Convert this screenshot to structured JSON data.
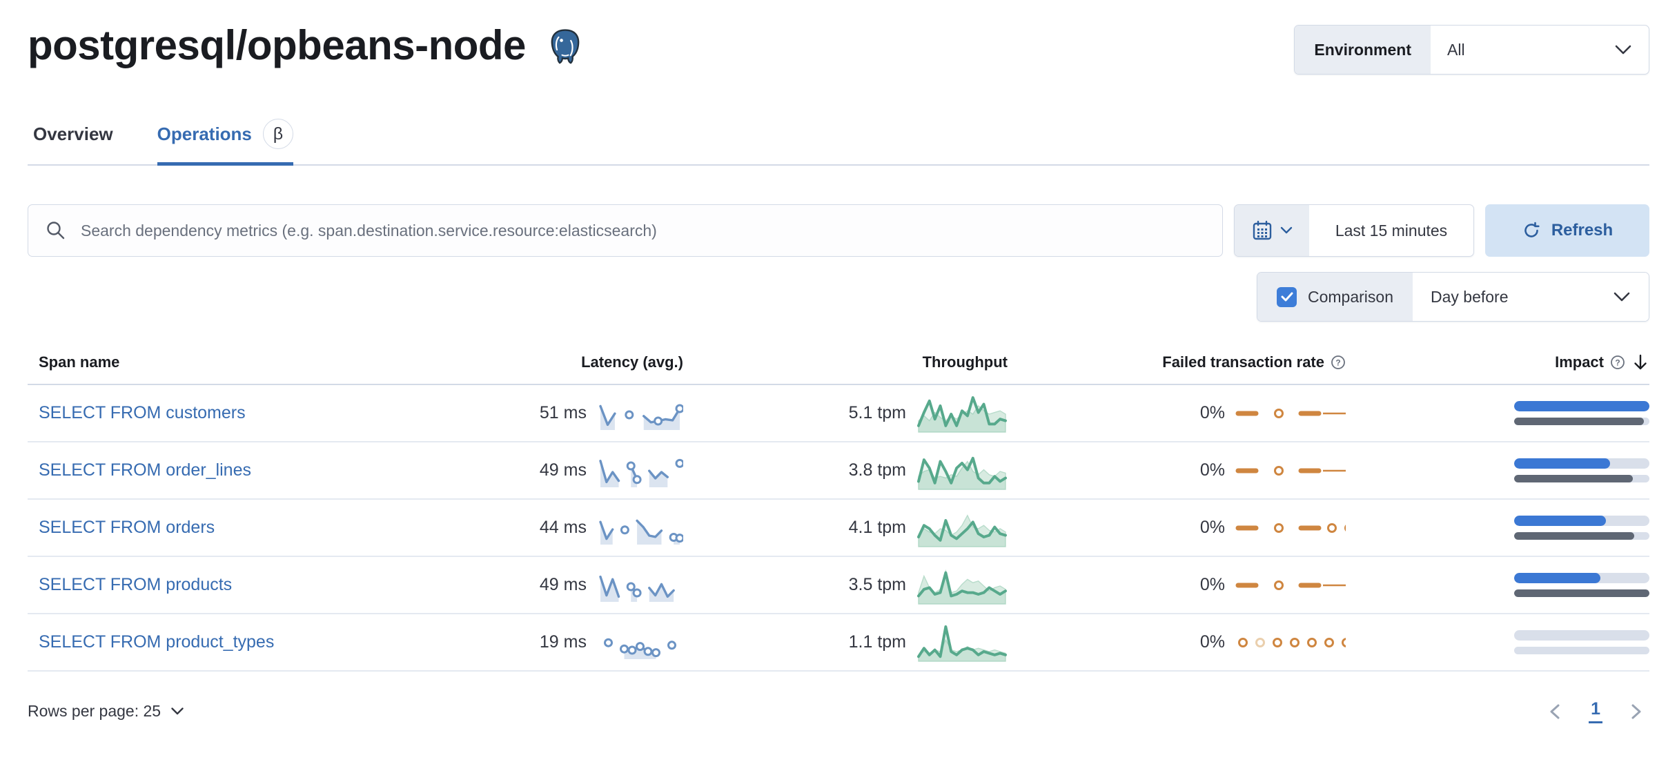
{
  "header": {
    "title": "postgresql/opbeans-node",
    "environment_label": "Environment",
    "environment_value": "All"
  },
  "tabs": [
    {
      "label": "Overview",
      "active": false
    },
    {
      "label": "Operations",
      "active": true,
      "beta": "β"
    }
  ],
  "toolbar": {
    "search_placeholder": "Search dependency metrics (e.g. span.destination.service.resource:elasticsearch)",
    "time_range": "Last 15 minutes",
    "refresh_label": "Refresh",
    "comparison_label": "Comparison",
    "comparison_checked": true,
    "comparison_value": "Day before"
  },
  "table": {
    "columns": [
      {
        "label": "Span name"
      },
      {
        "label": "Latency (avg.)"
      },
      {
        "label": "Throughput"
      },
      {
        "label": "Failed transaction rate",
        "help": true
      },
      {
        "label": "Impact",
        "help": true,
        "sorted": "desc"
      }
    ],
    "rows": [
      {
        "span_name": "SELECT FROM customers",
        "latency": "51 ms",
        "throughput": "5.1 tpm",
        "failed_rate": "0%",
        "impact_current": 100,
        "impact_previous": 96,
        "latency_spark": {
          "points": [
            0.85,
            0.1,
            0.55,
            null,
            0.5,
            null,
            0.45,
            0.2,
            0.25,
            0.32,
            0.28,
            0.75
          ],
          "dots": [
            4,
            8,
            11
          ]
        },
        "throughput_spark": {
          "current": [
            0.15,
            0.55,
            0.9,
            0.35,
            0.75,
            0.15,
            0.5,
            0.15,
            0.6,
            0.45,
            1.0,
            0.55,
            0.8,
            0.2,
            0.2,
            0.35,
            0.3
          ],
          "previous": [
            0.3,
            0.45,
            0.3,
            0.55,
            0.4,
            0.3,
            0.45,
            0.35,
            0.5,
            0.6,
            0.5,
            0.75,
            0.6,
            0.5,
            0.55,
            0.6,
            0.5
          ]
        },
        "failed_spark": [
          "dash",
          "gap",
          "dot",
          "gap",
          "dash",
          "line",
          "dot",
          "dot"
        ]
      },
      {
        "span_name": "SELECT FROM order_lines",
        "latency": "49 ms",
        "throughput": "3.8 tpm",
        "failed_rate": "0%",
        "impact_current": 71,
        "impact_previous": 88,
        "latency_spark": {
          "points": [
            0.95,
            0.1,
            0.5,
            0.15,
            null,
            0.75,
            0.2,
            null,
            0.55,
            0.25,
            0.5,
            0.3,
            null,
            0.85
          ],
          "dots": [
            5,
            6,
            13
          ]
        },
        "throughput_spark": {
          "current": [
            0.2,
            0.85,
            0.6,
            0.15,
            0.8,
            0.5,
            0.15,
            0.6,
            0.75,
            0.55,
            0.9,
            0.3,
            0.15,
            0.15,
            0.35,
            0.2,
            0.3
          ],
          "previous": [
            0.35,
            0.5,
            0.55,
            0.3,
            0.35,
            0.3,
            0.4,
            0.35,
            0.6,
            0.8,
            0.5,
            0.4,
            0.55,
            0.4,
            0.35,
            0.5,
            0.45
          ]
        },
        "failed_spark": [
          "dash",
          "gap",
          "dot",
          "gap",
          "dash",
          "line",
          "line",
          "dot"
        ]
      },
      {
        "span_name": "SELECT FROM orders",
        "latency": "44 ms",
        "throughput": "4.1 tpm",
        "failed_rate": "0%",
        "impact_current": 68,
        "impact_previous": 89,
        "latency_spark": {
          "points": [
            0.8,
            0.12,
            0.5,
            null,
            0.48,
            null,
            0.85,
            0.6,
            0.25,
            0.2,
            0.45,
            null,
            0.18,
            0.15
          ],
          "dots": [
            4,
            12,
            13
          ]
        },
        "throughput_spark": {
          "current": [
            0.25,
            0.6,
            0.5,
            0.3,
            0.15,
            0.75,
            0.3,
            0.2,
            0.35,
            0.5,
            0.7,
            0.35,
            0.25,
            0.3,
            0.55,
            0.35,
            0.3
          ],
          "previous": [
            0.3,
            0.5,
            0.4,
            0.35,
            0.5,
            0.45,
            0.3,
            0.4,
            0.6,
            0.9,
            0.55,
            0.5,
            0.6,
            0.45,
            0.4,
            0.5,
            0.4
          ]
        },
        "failed_spark": [
          "dash",
          "gap",
          "dot",
          "gap",
          "dash",
          "dot",
          "dot"
        ]
      },
      {
        "span_name": "SELECT FROM products",
        "latency": "49 ms",
        "throughput": "3.5 tpm",
        "failed_rate": "0%",
        "impact_current": 64,
        "impact_previous": 100,
        "latency_spark": {
          "points": [
            0.9,
            0.15,
            0.8,
            0.1,
            null,
            0.5,
            0.25,
            null,
            0.45,
            0.15,
            0.6,
            0.1,
            0.35,
            null
          ],
          "dots": [
            5,
            6
          ]
        },
        "throughput_spark": {
          "current": [
            0.2,
            0.4,
            0.45,
            0.25,
            0.3,
            0.9,
            0.2,
            0.25,
            0.35,
            0.3,
            0.3,
            0.25,
            0.3,
            0.45,
            0.35,
            0.25,
            0.35
          ],
          "previous": [
            0.3,
            0.8,
            0.45,
            0.3,
            0.4,
            0.95,
            0.3,
            0.35,
            0.55,
            0.7,
            0.6,
            0.65,
            0.5,
            0.35,
            0.45,
            0.5,
            0.4
          ]
        },
        "failed_spark": [
          "dash",
          "gap",
          "dot",
          "gap",
          "dash",
          "line",
          "dash"
        ]
      },
      {
        "span_name": "SELECT FROM product_types",
        "latency": "19 ms",
        "throughput": "1.1 tpm",
        "failed_rate": "0%",
        "impact_current": 0,
        "impact_previous": 0,
        "latency_spark": {
          "points": [
            null,
            0.55,
            null,
            0.3,
            0.25,
            0.4,
            0.2,
            0.15,
            null,
            0.45,
            null
          ],
          "dots": [
            1,
            3,
            4,
            5,
            6,
            7,
            9
          ]
        },
        "throughput_spark": {
          "current": [
            0.1,
            0.35,
            0.15,
            0.3,
            0.1,
            1.0,
            0.25,
            0.15,
            0.3,
            0.35,
            0.3,
            0.15,
            0.25,
            0.2,
            0.15,
            0.2,
            0.15
          ],
          "previous": [
            0.15,
            0.25,
            0.2,
            0.3,
            0.25,
            0.6,
            0.3,
            0.25,
            0.3,
            0.4,
            0.3,
            0.35,
            0.3,
            0.25,
            0.3,
            0.25,
            0.2
          ]
        },
        "failed_spark": [
          "dot",
          "fade",
          "dot",
          "dot",
          "dot",
          "dot",
          "dot"
        ]
      }
    ]
  },
  "footer": {
    "rows_per_page_label": "Rows per page: 25",
    "page": "1"
  },
  "colors": {
    "accent_blue": "#366bb1",
    "latency_line": "#6b93c4",
    "latency_area": "#dbe4f0",
    "throughput_line": "#57a98c",
    "throughput_prev_area": "#d8ebe1",
    "failed_orange": "#cf8640",
    "failed_orange_faded": "#eacfad",
    "impact_bar": "#3b78d4",
    "impact_prev_bar": "#5f6774",
    "impact_track": "#d9dfea",
    "form_label_bg": "#e9edf3",
    "border": "#d3dae6"
  }
}
